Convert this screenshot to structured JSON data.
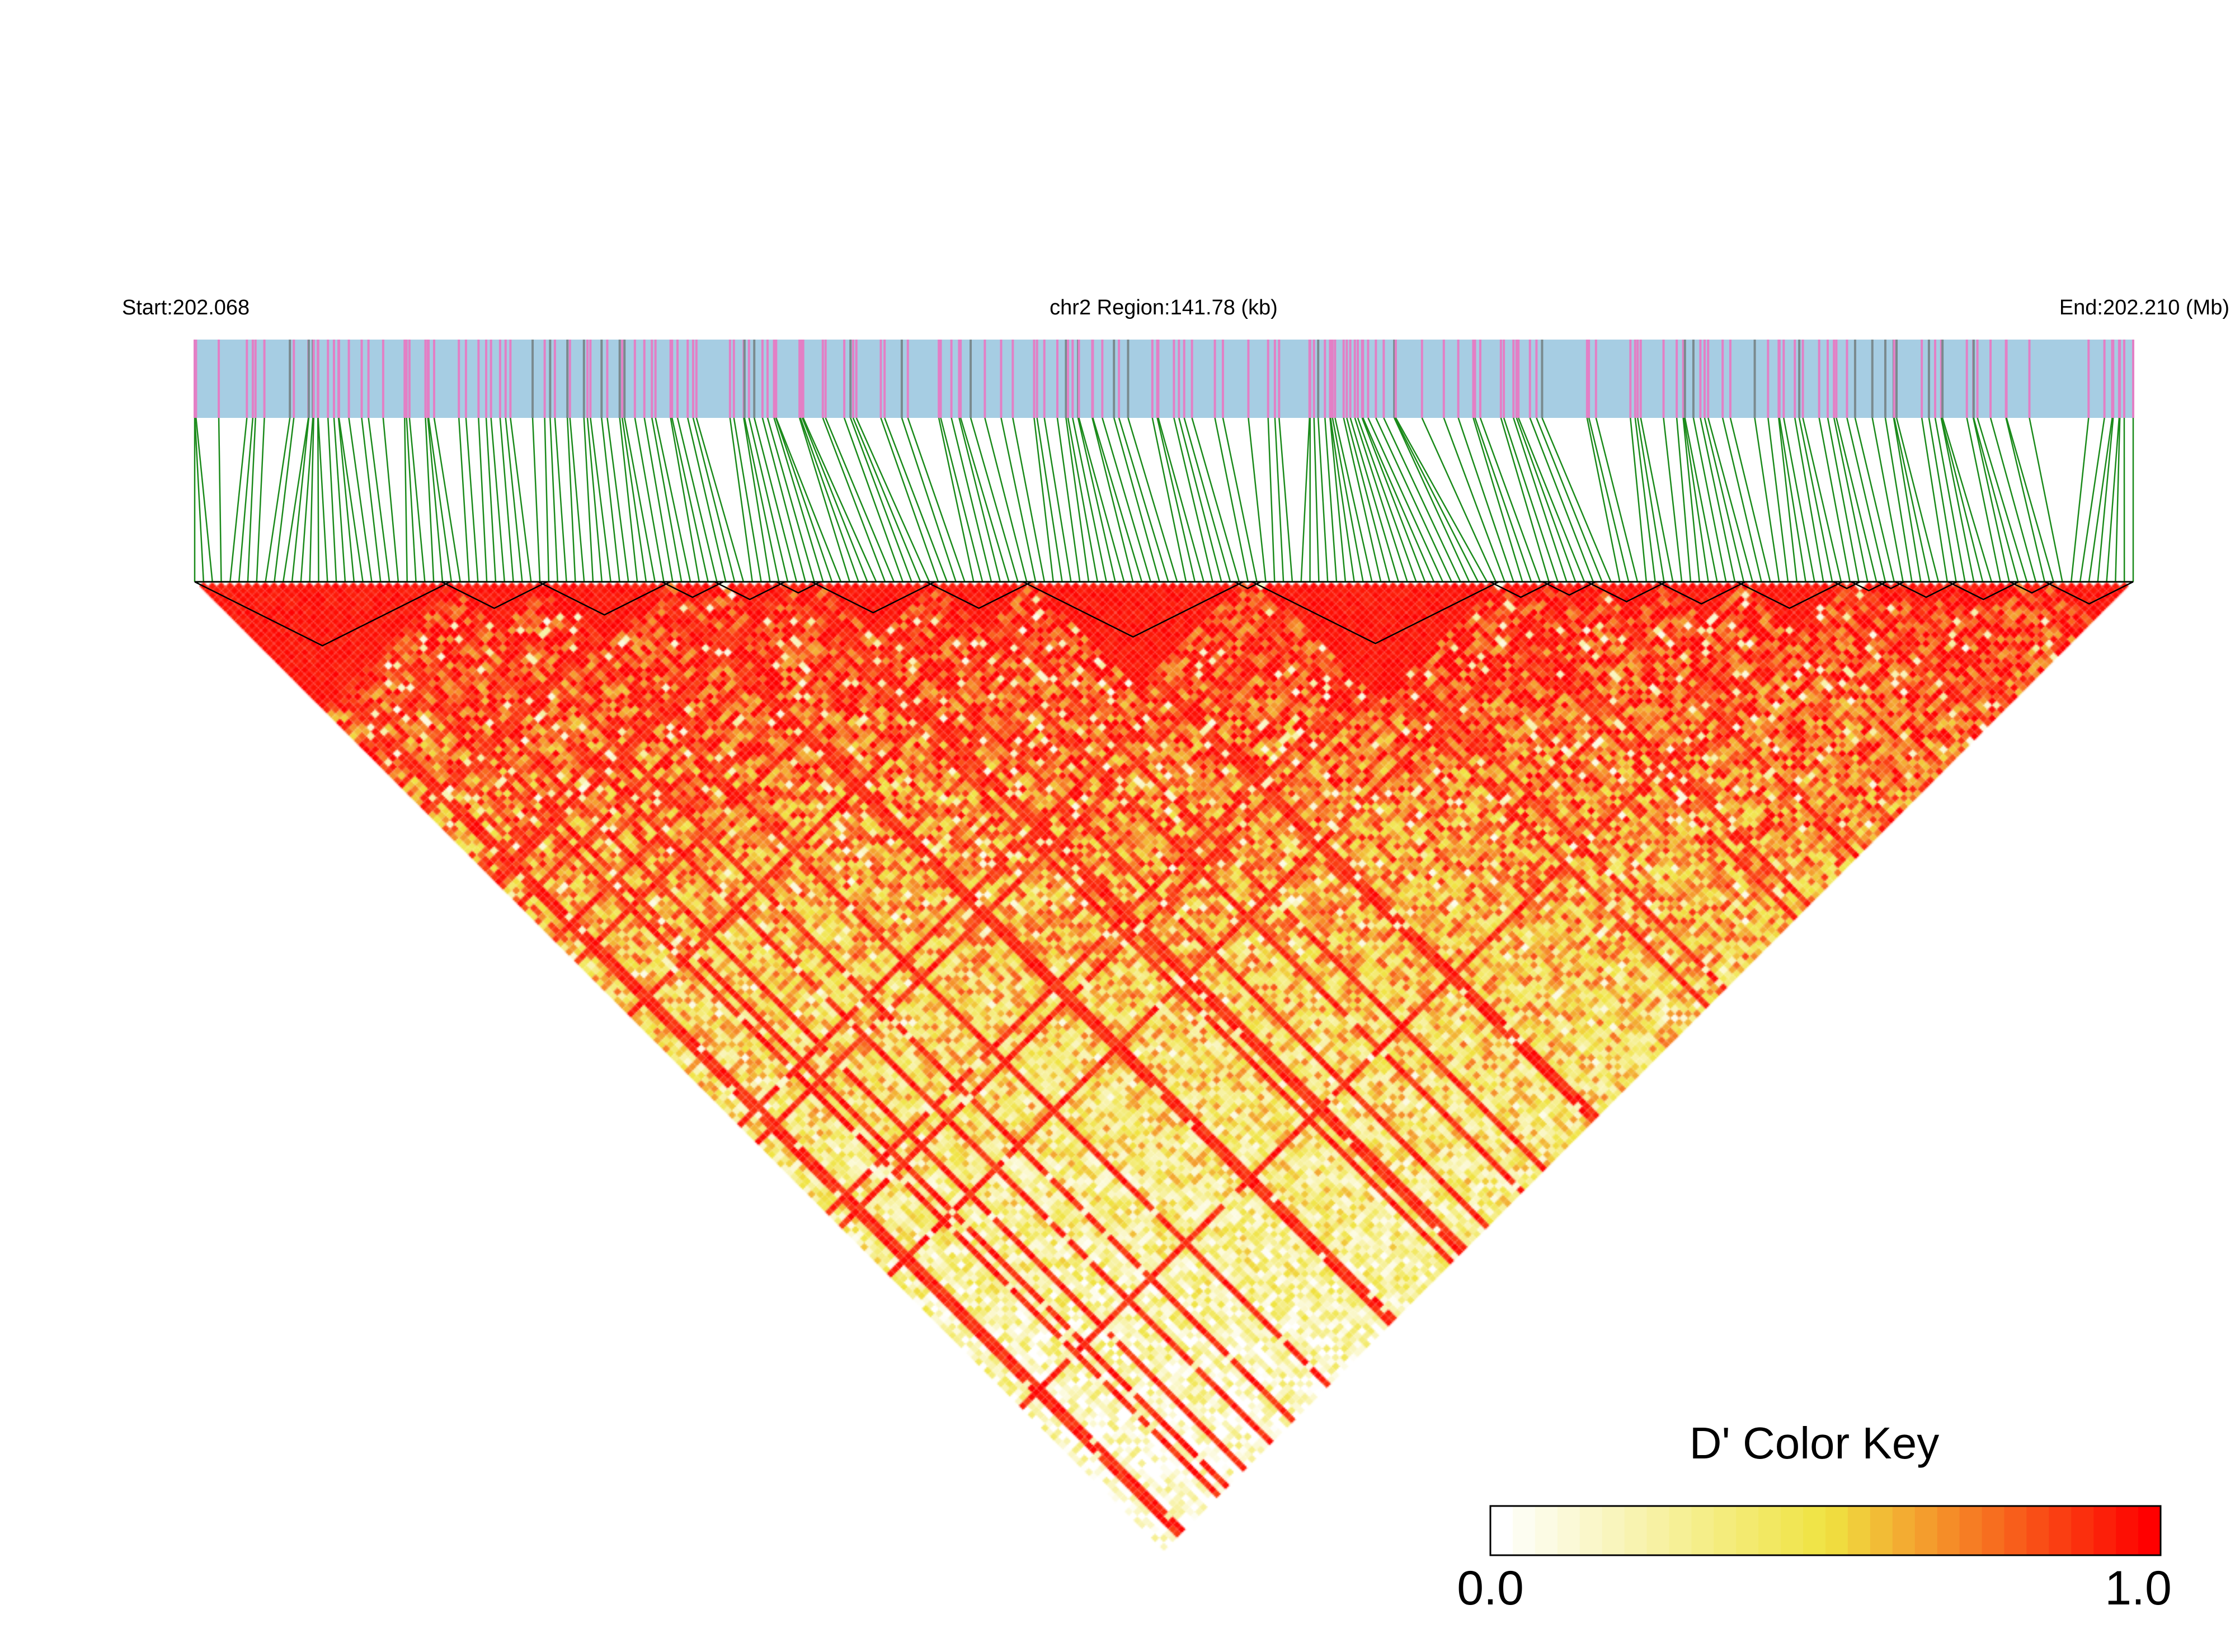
{
  "header": {
    "start_label": "Start:202.068",
    "region_label": "chr2 Region:141.78 (kb)",
    "end_label": "End:202.210 (Mb)"
  },
  "colors": {
    "bar_background": "#a6cde3",
    "snp_tick_pink": "#e37fc5",
    "snp_tick_grey": "#7a8a8e",
    "connector_line": "#1a8a1a",
    "ld_high": "#ff0000",
    "ld_mid": "#f0e442",
    "ld_low": "#ffffff",
    "block_outline": "#000000"
  },
  "chart_data": {
    "type": "heatmap",
    "description_kind": "linkage-disequilibrium-triangle",
    "chromosome": "chr2",
    "region_start_mb": 202.068,
    "region_end_mb": 202.21,
    "region_length_kb": 141.78,
    "metric": "D'",
    "color_scale": {
      "min": 0.0,
      "max": 1.0,
      "stops": [
        "#ffffff",
        "#f0e442",
        "#ff0000"
      ]
    },
    "ld_blocks_approx_fraction_of_region": [
      [
        0.0,
        0.13
      ],
      [
        0.13,
        0.18
      ],
      [
        0.18,
        0.24
      ],
      [
        0.24,
        0.27
      ],
      [
        0.27,
        0.3
      ],
      [
        0.3,
        0.32
      ],
      [
        0.32,
        0.38
      ],
      [
        0.38,
        0.43
      ],
      [
        0.43,
        0.54
      ],
      [
        0.54,
        0.55
      ],
      [
        0.55,
        0.67
      ],
      [
        0.67,
        0.7
      ],
      [
        0.7,
        0.72
      ],
      [
        0.72,
        0.76
      ],
      [
        0.76,
        0.8
      ],
      [
        0.8,
        0.85
      ],
      [
        0.85,
        0.86
      ],
      [
        0.86,
        0.87
      ],
      [
        0.87,
        0.88
      ],
      [
        0.88,
        0.91
      ],
      [
        0.91,
        0.94
      ],
      [
        0.94,
        0.96
      ],
      [
        0.96,
        1.0
      ]
    ]
  },
  "color_key": {
    "title": "D' Color Key",
    "min_label": "0.0",
    "max_label": "1.0"
  }
}
